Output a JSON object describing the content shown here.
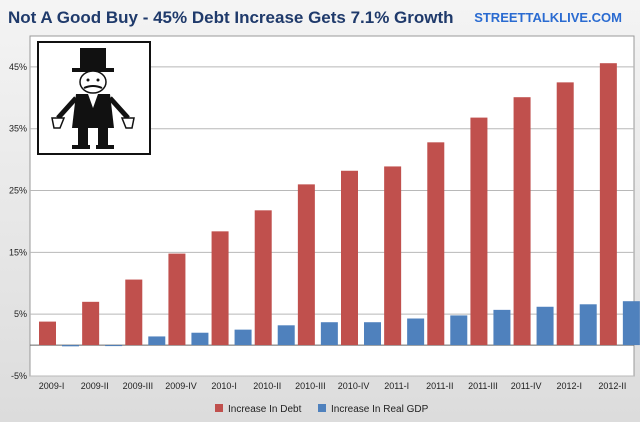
{
  "chart_data": {
    "type": "bar",
    "title": "Not A Good Buy - 45% Debt Increase Gets 7.1% Growth",
    "watermark": "STREETTALKLIVE.COM",
    "categories": [
      "2009-I",
      "2009-II",
      "2009-III",
      "2009-IV",
      "2010-I",
      "2010-II",
      "2010-III",
      "2010-IV",
      "2011-I",
      "2011-II",
      "2011-III",
      "2011-IV",
      "2012-I",
      "2012-II"
    ],
    "series": [
      {
        "name": "Increase In Debt",
        "color": "#c0504d",
        "values": [
          3.8,
          7.0,
          10.6,
          14.8,
          18.4,
          21.8,
          26.0,
          28.2,
          28.9,
          32.8,
          36.8,
          40.1,
          42.5,
          45.6
        ]
      },
      {
        "name": "Increase In Real GDP",
        "color": "#4f81bd",
        "values": [
          -0.2,
          -0.1,
          1.4,
          2.0,
          2.5,
          3.2,
          3.7,
          3.7,
          4.3,
          4.8,
          5.7,
          6.2,
          6.6,
          7.1
        ]
      }
    ],
    "yticks": [
      "-5%",
      "5%",
      "15%",
      "25%",
      "35%",
      "45%"
    ],
    "ylim": [
      -5,
      50
    ],
    "grid": true,
    "legend_position": "bottom"
  },
  "colors": {
    "title": "#1f3a6b",
    "watermark": "#2a6bd1",
    "grid": "#b8b8b8"
  },
  "icons": {
    "cartoon": "monopoly-man-empty-pockets-icon"
  }
}
